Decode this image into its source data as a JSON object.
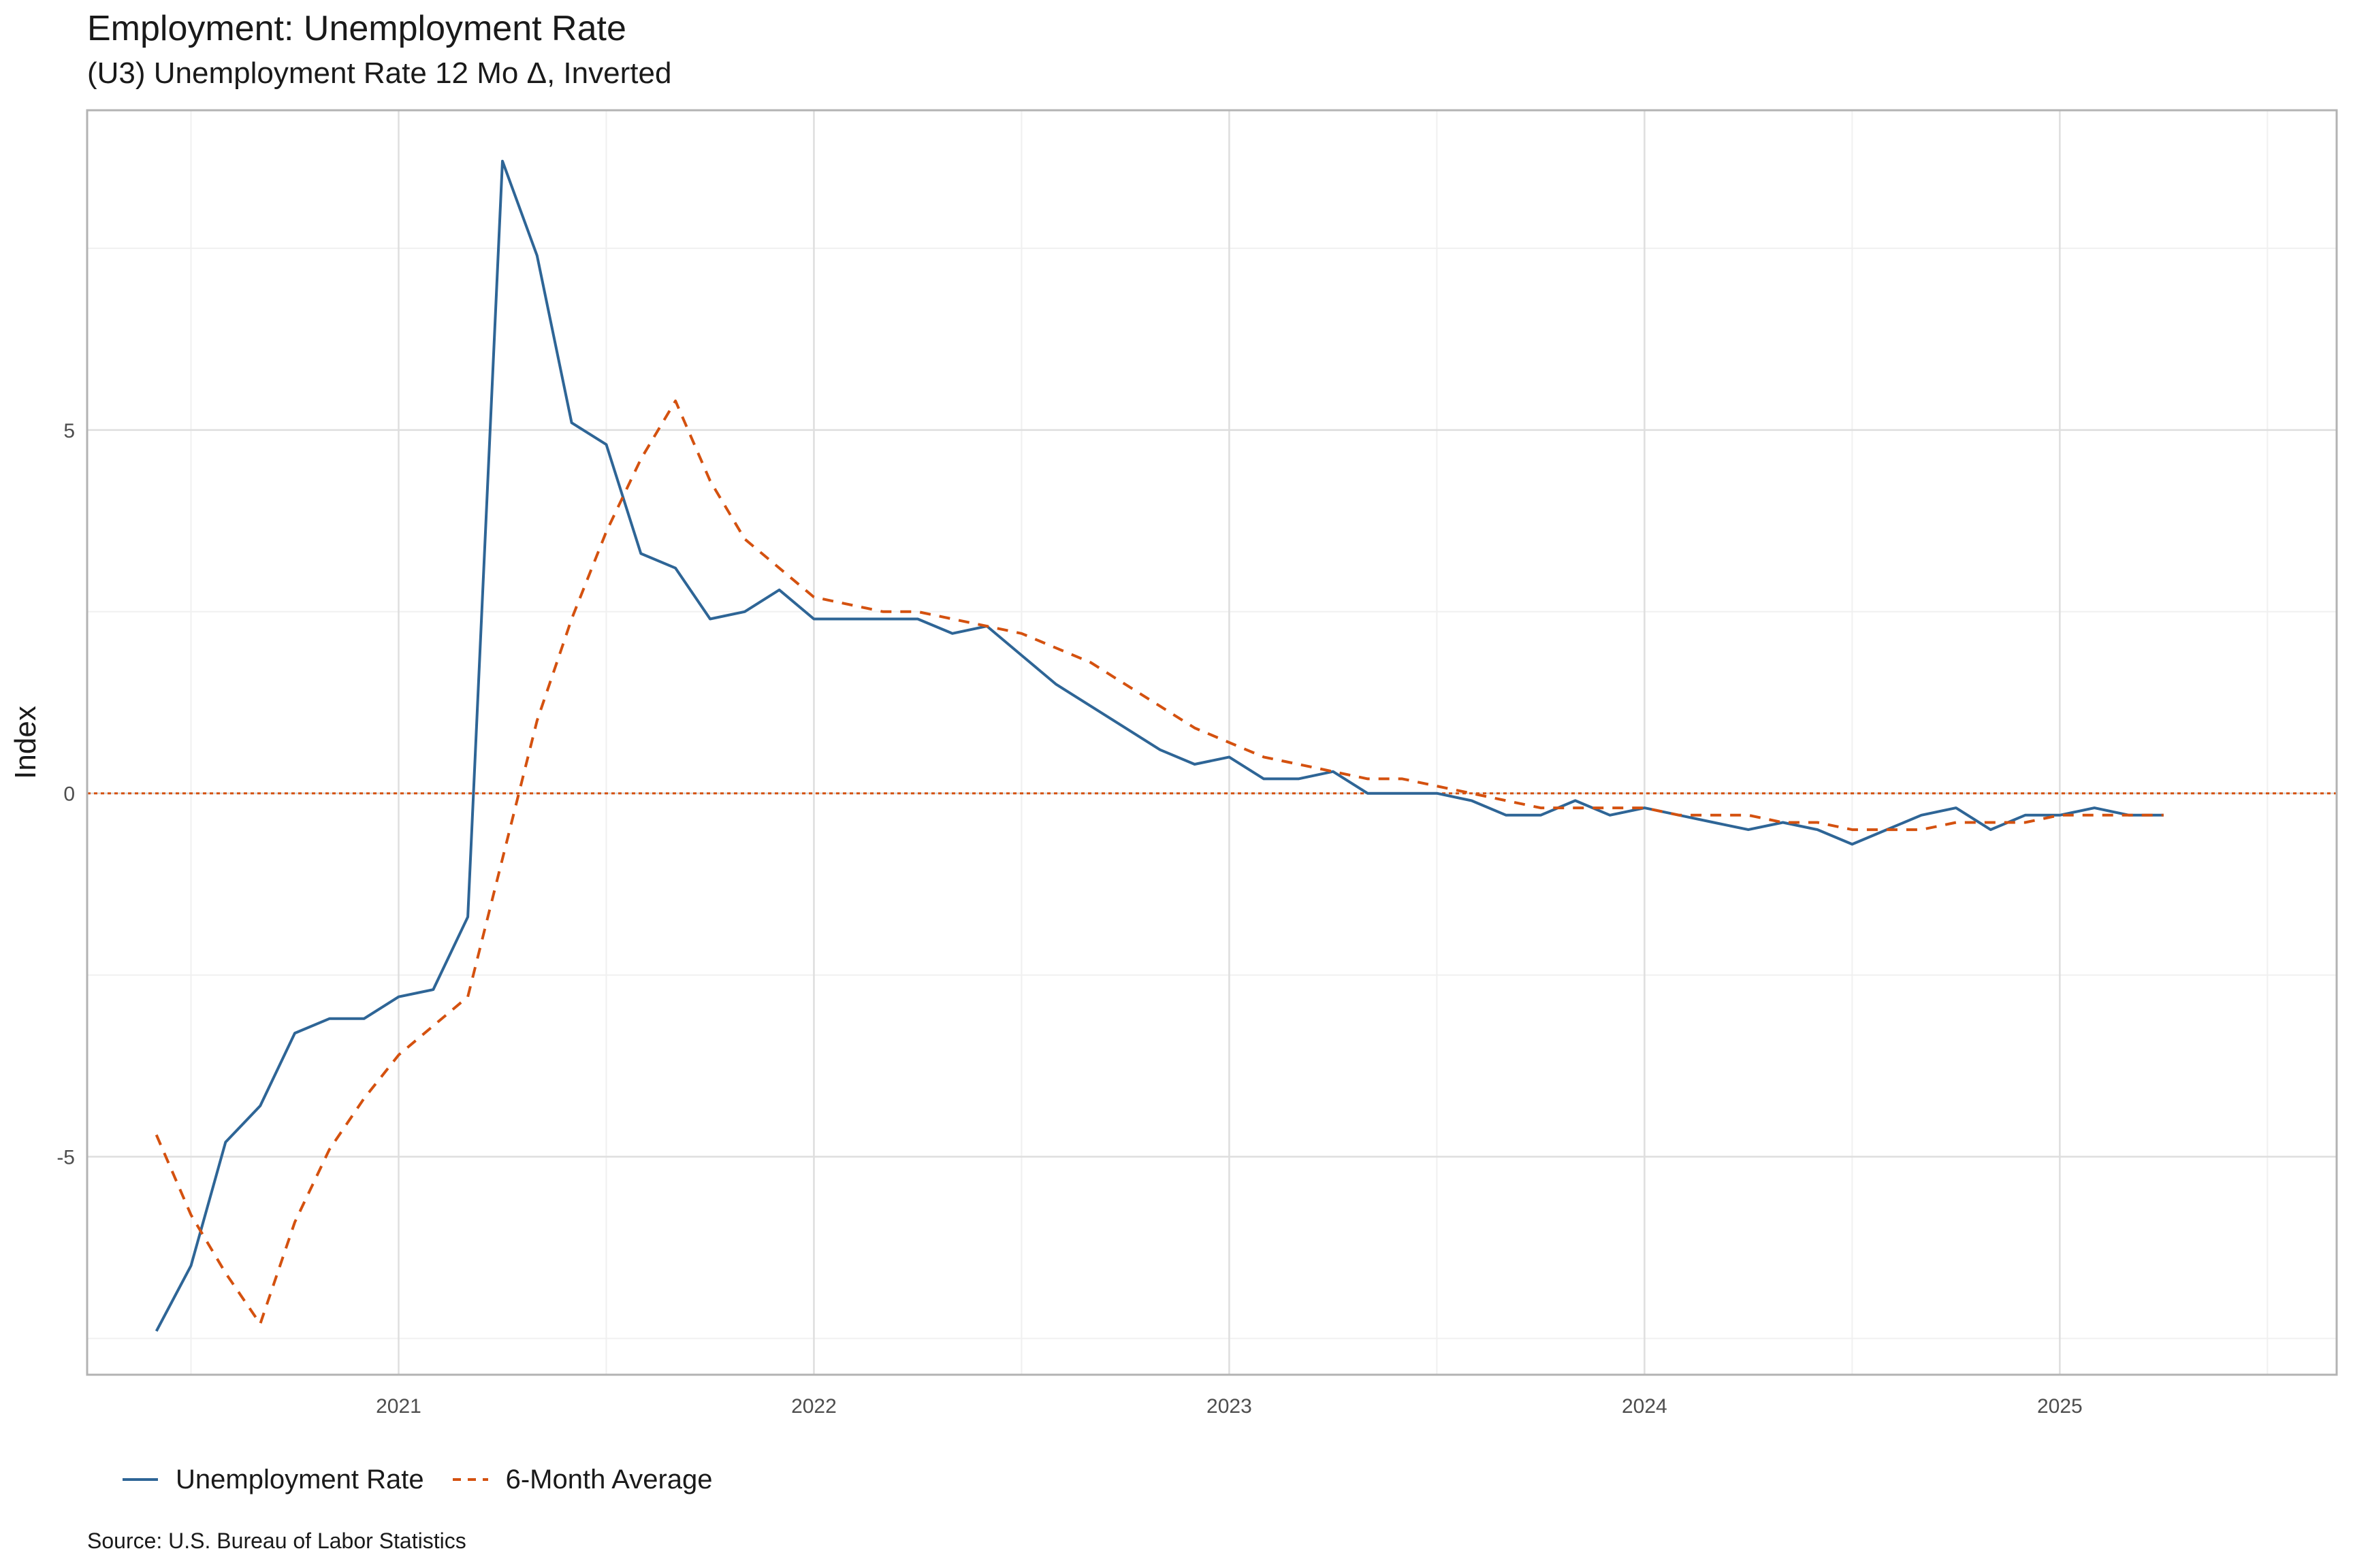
{
  "chart_data": {
    "type": "line",
    "title": "Employment: Unemployment Rate",
    "subtitle": "(U3) Unemployment Rate 12 Mo Δ, Inverted",
    "xlabel": "",
    "ylabel": "Index",
    "x_ticks": [
      "2021",
      "2022",
      "2023",
      "2024",
      "2025"
    ],
    "y_ticks": [
      "-5",
      "0",
      "5"
    ],
    "xlim": [
      "2020-04-01",
      "2025-09-01"
    ],
    "ylim": [
      -8.0,
      9.4
    ],
    "grid": true,
    "legend_position": "bottom",
    "reference_line": {
      "y": 0,
      "color": "#d4510f",
      "style": "dotted"
    },
    "x": [
      "2020-06",
      "2020-07",
      "2020-08",
      "2020-09",
      "2020-10",
      "2020-11",
      "2020-12",
      "2021-01",
      "2021-02",
      "2021-03",
      "2021-04",
      "2021-05",
      "2021-06",
      "2021-07",
      "2021-08",
      "2021-09",
      "2021-10",
      "2021-11",
      "2021-12",
      "2022-01",
      "2022-02",
      "2022-03",
      "2022-04",
      "2022-05",
      "2022-06",
      "2022-07",
      "2022-08",
      "2022-09",
      "2022-10",
      "2022-11",
      "2022-12",
      "2023-01",
      "2023-02",
      "2023-03",
      "2023-04",
      "2023-05",
      "2023-06",
      "2023-07",
      "2023-08",
      "2023-09",
      "2023-10",
      "2023-11",
      "2023-12",
      "2024-01",
      "2024-02",
      "2024-03",
      "2024-04",
      "2024-05",
      "2024-06",
      "2024-07",
      "2024-08",
      "2024-09",
      "2024-10",
      "2024-11",
      "2024-12",
      "2025-01",
      "2025-02",
      "2025-03",
      "2025-04"
    ],
    "series": [
      {
        "name": "Unemployment Rate",
        "color": "#2e6596",
        "style": "solid",
        "values": [
          -7.4,
          -6.5,
          -4.8,
          -4.3,
          -3.3,
          -3.1,
          -3.1,
          -2.8,
          -2.7,
          -1.7,
          8.7,
          7.4,
          5.1,
          4.8,
          3.3,
          3.1,
          2.4,
          2.5,
          2.8,
          2.4,
          2.4,
          2.4,
          2.4,
          2.2,
          2.3,
          1.9,
          1.5,
          1.2,
          0.9,
          0.6,
          0.4,
          0.5,
          0.2,
          0.2,
          0.3,
          0.0,
          0.0,
          0.0,
          -0.1,
          -0.3,
          -0.3,
          -0.1,
          -0.3,
          -0.2,
          -0.3,
          -0.4,
          -0.5,
          -0.4,
          -0.5,
          -0.7,
          -0.5,
          -0.3,
          -0.2,
          -0.5,
          -0.3,
          -0.3,
          -0.2,
          -0.3,
          -0.3
        ]
      },
      {
        "name": "6-Month Average",
        "color": "#d4510f",
        "style": "dashed",
        "values": [
          -4.7,
          -5.8,
          -6.6,
          -7.3,
          -5.9,
          -4.9,
          -4.2,
          -3.6,
          -3.2,
          -2.8,
          -0.9,
          1.0,
          2.4,
          3.6,
          4.6,
          5.4,
          4.3,
          3.5,
          3.1,
          2.7,
          2.6,
          2.5,
          2.5,
          2.4,
          2.3,
          2.2,
          2.0,
          1.8,
          1.5,
          1.2,
          0.9,
          0.7,
          0.5,
          0.4,
          0.3,
          0.2,
          0.2,
          0.1,
          0.0,
          -0.1,
          -0.2,
          -0.2,
          -0.2,
          -0.2,
          -0.3,
          -0.3,
          -0.3,
          -0.4,
          -0.4,
          -0.5,
          -0.5,
          -0.5,
          -0.4,
          -0.4,
          -0.4,
          -0.3,
          -0.3,
          -0.3,
          -0.3
        ]
      }
    ],
    "source_label": "Source:",
    "source": "U.S. Bureau of Labor Statistics"
  }
}
